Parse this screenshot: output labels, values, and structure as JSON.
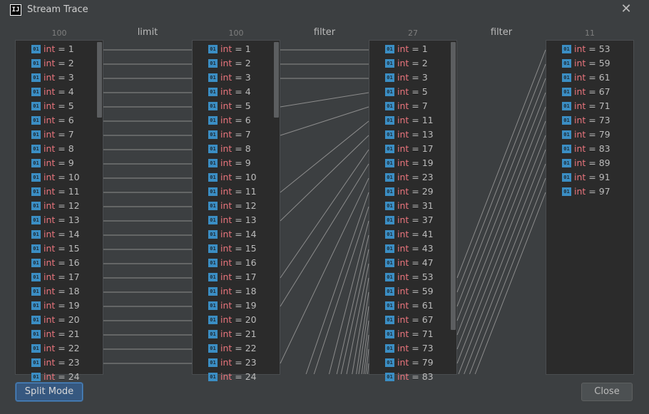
{
  "window": {
    "title": "Stream Trace",
    "logo_text": "IJ"
  },
  "columns": [
    {
      "count": "100",
      "values": [
        1,
        2,
        3,
        4,
        5,
        6,
        7,
        8,
        9,
        10,
        11,
        12,
        13,
        14,
        15,
        16,
        17,
        18,
        19,
        20,
        21,
        22,
        23,
        24
      ]
    },
    {
      "count": "100",
      "values": [
        1,
        2,
        3,
        4,
        5,
        6,
        7,
        8,
        9,
        10,
        11,
        12,
        13,
        14,
        15,
        16,
        17,
        18,
        19,
        20,
        21,
        22,
        23,
        24
      ]
    },
    {
      "count": "27",
      "values": [
        1,
        2,
        3,
        5,
        7,
        11,
        13,
        17,
        19,
        23,
        29,
        31,
        37,
        41,
        43,
        47,
        53,
        59,
        61,
        67,
        71,
        73,
        79,
        83
      ]
    },
    {
      "count": "11",
      "values": [
        53,
        59,
        61,
        67,
        71,
        73,
        79,
        83,
        89,
        91,
        97
      ]
    }
  ],
  "operations": [
    "limit",
    "filter",
    "filter"
  ],
  "item_type": "int",
  "item_icon_label": "01",
  "buttons": {
    "split_mode": "Split Mode",
    "close": "Close"
  },
  "colors": {
    "type_keyword": "#e8747c",
    "icon": "#3b8ec4",
    "link_line": "#8c8c8c"
  }
}
